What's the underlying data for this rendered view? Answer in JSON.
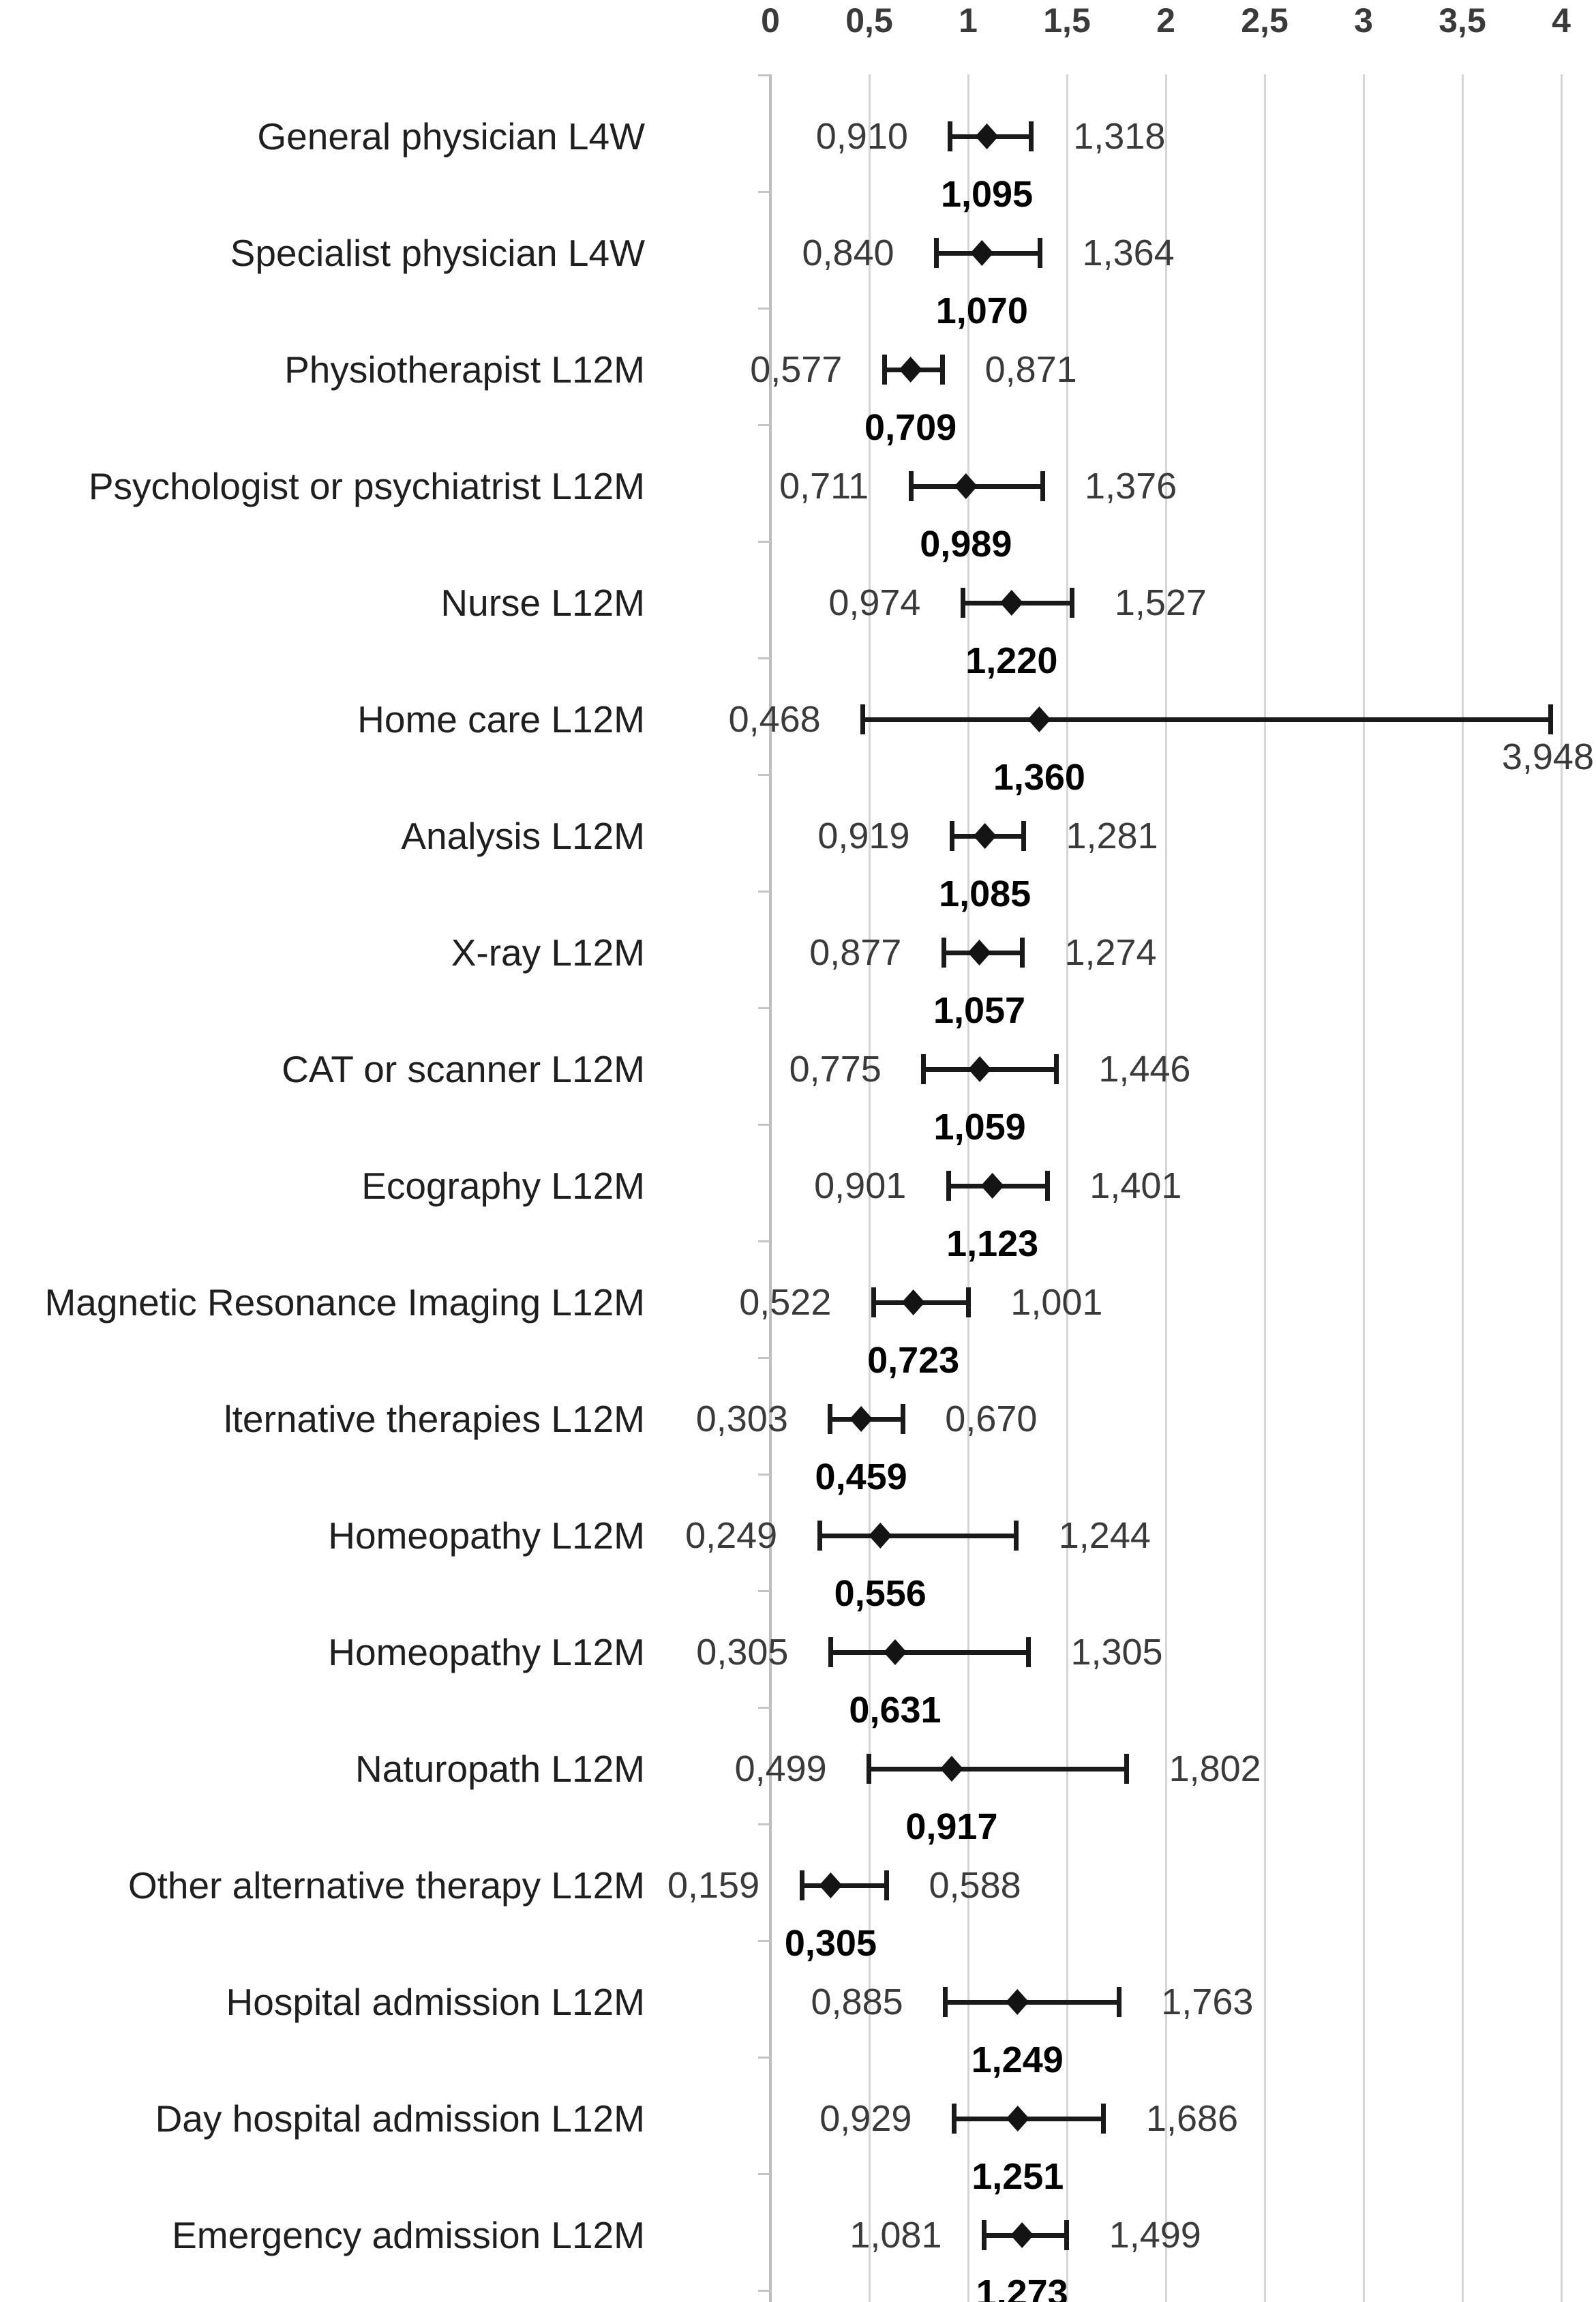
{
  "chart_data": {
    "type": "scatter",
    "variant": "horizontal-forest-plot-with-error-bars",
    "title": "",
    "xlabel": "",
    "ylabel": "",
    "decimal_separator": "comma",
    "marker": "diamond",
    "legend": "none",
    "x_axis": {
      "position": "top",
      "range": [
        0,
        4
      ],
      "grid": true,
      "tick_values": [
        0,
        0.5,
        1,
        1.5,
        2,
        2.5,
        3,
        3.5,
        4
      ],
      "tick_labels": [
        "0",
        "0,5",
        "1",
        "1,5",
        "2",
        "2,5",
        "3",
        "3,5",
        "4"
      ]
    },
    "rows": [
      {
        "label": "General physician L4W",
        "low": 0.91,
        "mid": 1.095,
        "high": 1.318,
        "low_label": "0,910",
        "mid_label": "1,095",
        "high_label": "1,318"
      },
      {
        "label": "Specialist physician L4W",
        "low": 0.84,
        "mid": 1.07,
        "high": 1.364,
        "low_label": "0,840",
        "mid_label": "1,070",
        "high_label": "1,364"
      },
      {
        "label": "Physiotherapist L12M",
        "low": 0.577,
        "mid": 0.709,
        "high": 0.871,
        "low_label": "0,577",
        "mid_label": "0,709",
        "high_label": "0,871"
      },
      {
        "label": "Psychologist or psychiatrist L12M",
        "low": 0.711,
        "mid": 0.989,
        "high": 1.376,
        "low_label": "0,711",
        "mid_label": "0,989",
        "high_label": "1,376"
      },
      {
        "label": "Nurse L12M",
        "low": 0.974,
        "mid": 1.22,
        "high": 1.527,
        "low_label": "0,974",
        "mid_label": "1,220",
        "high_label": "1,527"
      },
      {
        "label": "Home care L12M",
        "low": 0.468,
        "mid": 1.36,
        "high": 3.948,
        "low_label": "0,468",
        "mid_label": "1,360",
        "high_label": "3,948",
        "high_label_placement": "below-far-right"
      },
      {
        "label": "Analysis L12M",
        "low": 0.919,
        "mid": 1.085,
        "high": 1.281,
        "low_label": "0,919",
        "mid_label": "1,085",
        "high_label": "1,281"
      },
      {
        "label": "X-ray L12M",
        "low": 0.877,
        "mid": 1.057,
        "high": 1.274,
        "low_label": "0,877",
        "mid_label": "1,057",
        "high_label": "1,274"
      },
      {
        "label": "CAT or scanner L12M",
        "low": 0.775,
        "mid": 1.059,
        "high": 1.446,
        "low_label": "0,775",
        "mid_label": "1,059",
        "high_label": "1,446"
      },
      {
        "label": "Ecography L12M",
        "low": 0.901,
        "mid": 1.123,
        "high": 1.401,
        "low_label": "0,901",
        "mid_label": "1,123",
        "high_label": "1,401"
      },
      {
        "label": "Magnetic Resonance Imaging L12M",
        "low": 0.522,
        "mid": 0.723,
        "high": 1.001,
        "low_label": "0,522",
        "mid_label": "0,723",
        "high_label": "1,001"
      },
      {
        "label": "lternative therapies L12M",
        "low": 0.303,
        "mid": 0.459,
        "high": 0.67,
        "low_label": "0,303",
        "mid_label": "0,459",
        "high_label": "0,670"
      },
      {
        "label": "Homeopathy L12M",
        "low": 0.249,
        "mid": 0.556,
        "high": 1.244,
        "low_label": "0,249",
        "mid_label": "0,556",
        "high_label": "1,244"
      },
      {
        "label": "Homeopathy L12M",
        "low": 0.305,
        "mid": 0.631,
        "high": 1.305,
        "low_label": "0,305",
        "mid_label": "0,631",
        "high_label": "1,305"
      },
      {
        "label": "Naturopath L12M",
        "low": 0.499,
        "mid": 0.917,
        "high": 1.802,
        "low_label": "0,499",
        "mid_label": "0,917",
        "high_label": "1,802"
      },
      {
        "label": "Other alternative therapy L12M",
        "low": 0.159,
        "mid": 0.305,
        "high": 0.588,
        "low_label": "0,159",
        "mid_label": "0,305",
        "high_label": "0,588"
      },
      {
        "label": "Hospital admission L12M",
        "low": 0.885,
        "mid": 1.249,
        "high": 1.763,
        "low_label": "0,885",
        "mid_label": "1,249",
        "high_label": "1,763"
      },
      {
        "label": "Day hospital admission L12M",
        "low": 0.929,
        "mid": 1.251,
        "high": 1.686,
        "low_label": "0,929",
        "mid_label": "1,251",
        "high_label": "1,686"
      },
      {
        "label": "Emergency admission L12M",
        "low": 1.081,
        "mid": 1.273,
        "high": 1.499,
        "low_label": "1,081",
        "mid_label": "1,273",
        "high_label": "1,499"
      }
    ],
    "colors": {
      "error_bar": "#1a1a1a",
      "marker": "#141414",
      "gridline": "#d5d5d5",
      "axis_line": "#bdbdbd",
      "category_text": "#1f1f1f",
      "ci_value_text": "#3a3a3a",
      "point_estimate_text": "#000000"
    }
  }
}
